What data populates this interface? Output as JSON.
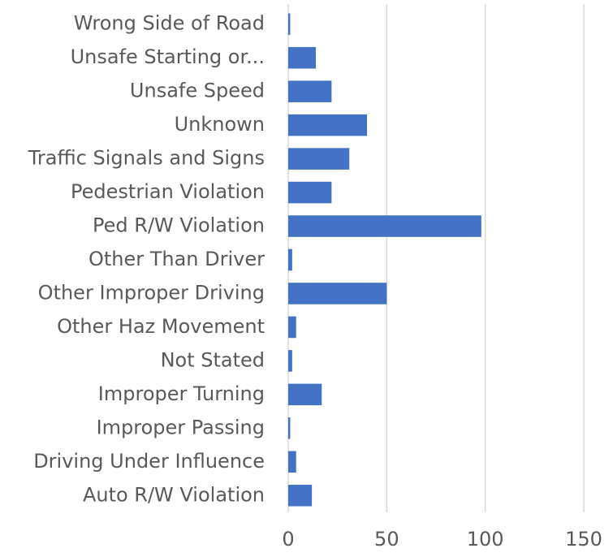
{
  "chart_data": {
    "type": "bar",
    "orientation": "horizontal",
    "categories": [
      "Wrong Side of Road",
      "Unsafe Starting or...",
      "Unsafe Speed",
      "Unknown",
      "Traffic Signals and Signs",
      "Pedestrian Violation",
      "Ped R/W Violation",
      "Other Than Driver",
      "Other Improper Driving",
      "Other Haz Movement",
      "Not Stated",
      "Improper Turning",
      "Improper Passing",
      "Driving Under Influence",
      "Auto R/W Violation"
    ],
    "values": [
      1,
      14,
      22,
      40,
      31,
      22,
      98,
      2,
      50,
      4,
      2,
      17,
      1,
      4,
      12
    ],
    "color": "#4472c4",
    "xlim": [
      0,
      150
    ],
    "xticks": [
      0,
      50,
      100,
      150
    ],
    "grid": true
  }
}
